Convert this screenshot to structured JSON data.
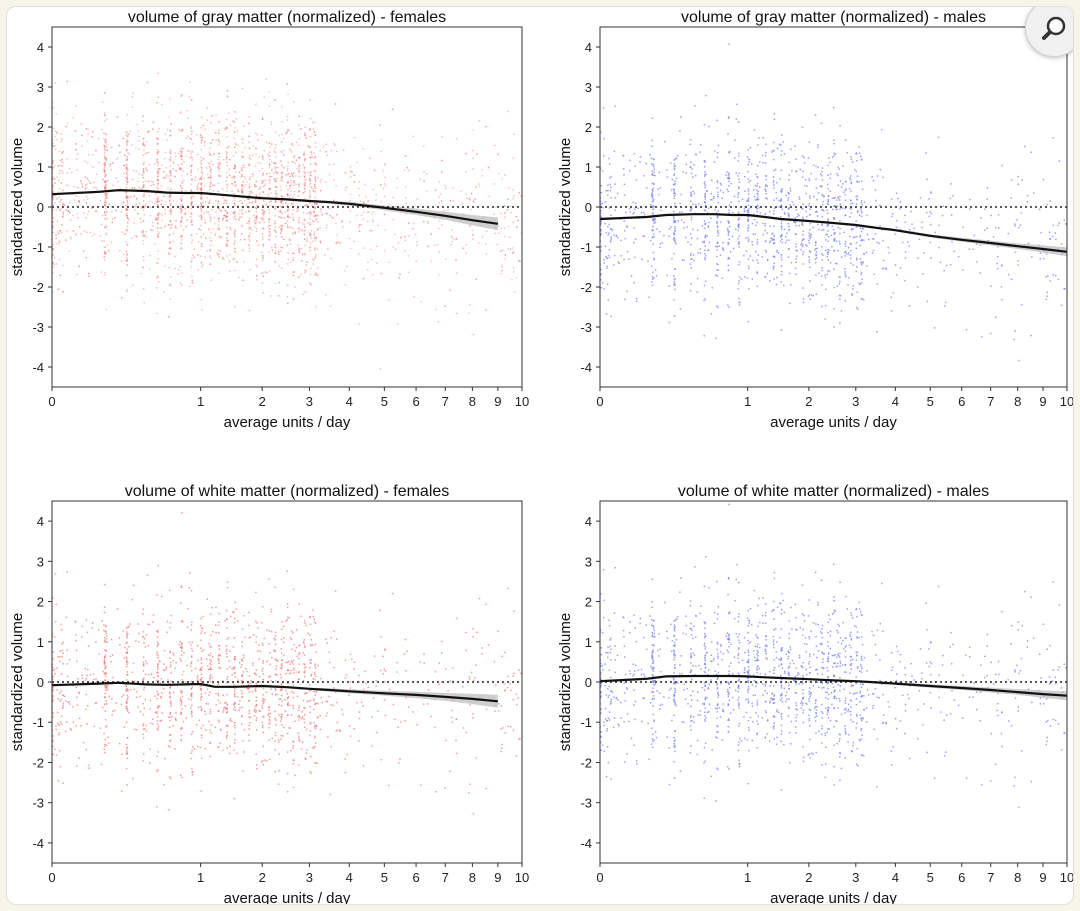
{
  "colors": {
    "females": "#ef7f7f",
    "males": "#8484f2",
    "trend": "#111111",
    "band": "#bdbdbd"
  },
  "zoom_icon": "magnifier-icon",
  "chart_data": [
    {
      "type": "scatter",
      "title": "volume of gray matter (normalized) - females",
      "xlabel": "average units / day",
      "ylabel": "standardized volume",
      "color": "females",
      "x_ticks": [
        "0",
        "1",
        "2",
        "3",
        "4",
        "5",
        "6",
        "7",
        "8",
        "9",
        "10"
      ],
      "y_ticks": [
        "-4",
        "-3",
        "-2",
        "-1",
        "0",
        "1",
        "2",
        "3",
        "4"
      ],
      "ylim": [
        -4.5,
        4.5
      ],
      "xlim": [
        0,
        10
      ],
      "x_scale": "square-root",
      "reference_line": {
        "y": 0,
        "style": "dotted"
      },
      "trend": {
        "x": [
          0,
          0.1,
          0.2,
          0.4,
          0.6,
          0.8,
          1.0,
          1.2,
          1.5,
          2.0,
          2.5,
          3.0,
          3.5,
          4.0,
          5.0,
          6.0,
          7.0,
          8.0,
          9.0
        ],
        "y": [
          0.32,
          0.38,
          0.42,
          0.4,
          0.36,
          0.35,
          0.35,
          0.32,
          0.28,
          0.22,
          0.19,
          0.15,
          0.12,
          0.08,
          -0.02,
          -0.12,
          -0.22,
          -0.33,
          -0.42
        ],
        "band": [
          0.03,
          0.03,
          0.03,
          0.02,
          0.02,
          0.02,
          0.02,
          0.02,
          0.02,
          0.03,
          0.03,
          0.03,
          0.04,
          0.05,
          0.06,
          0.08,
          0.1,
          0.13,
          0.16
        ]
      }
    },
    {
      "type": "scatter",
      "title": "volume of gray matter (normalized) - males",
      "xlabel": "average units / day",
      "ylabel": "standardized volume",
      "color": "males",
      "x_ticks": [
        "0",
        "1",
        "2",
        "3",
        "4",
        "5",
        "6",
        "7",
        "8",
        "9",
        "10"
      ],
      "y_ticks": [
        "-4",
        "-3",
        "-2",
        "-1",
        "0",
        "1",
        "2",
        "3",
        "4"
      ],
      "ylim": [
        -4.5,
        4.5
      ],
      "xlim": [
        0,
        10
      ],
      "x_scale": "square-root",
      "reference_line": {
        "y": 0,
        "style": "dotted"
      },
      "trend": {
        "x": [
          0,
          0.1,
          0.2,
          0.4,
          0.6,
          0.8,
          1.0,
          1.2,
          1.5,
          2.0,
          2.5,
          3.0,
          3.5,
          4.0,
          5.0,
          6.0,
          7.0,
          8.0,
          9.0,
          10.0
        ],
        "y": [
          -0.3,
          -0.25,
          -0.2,
          -0.18,
          -0.18,
          -0.2,
          -0.2,
          -0.24,
          -0.3,
          -0.35,
          -0.4,
          -0.45,
          -0.52,
          -0.58,
          -0.72,
          -0.82,
          -0.9,
          -0.98,
          -1.05,
          -1.12
        ],
        "band": [
          0.03,
          0.03,
          0.02,
          0.02,
          0.02,
          0.02,
          0.02,
          0.02,
          0.02,
          0.02,
          0.02,
          0.03,
          0.03,
          0.03,
          0.04,
          0.05,
          0.06,
          0.07,
          0.09,
          0.11
        ]
      }
    },
    {
      "type": "scatter",
      "title": "volume of white matter (normalized) - females",
      "xlabel": "average units / day",
      "ylabel": "standardized volume",
      "color": "females",
      "x_ticks": [
        "0",
        "1",
        "2",
        "3",
        "4",
        "5",
        "6",
        "7",
        "8",
        "9",
        "10"
      ],
      "y_ticks": [
        "-4",
        "-3",
        "-2",
        "-1",
        "0",
        "1",
        "2",
        "3",
        "4"
      ],
      "ylim": [
        -4.5,
        4.5
      ],
      "xlim": [
        0,
        10
      ],
      "x_scale": "square-root",
      "reference_line": {
        "y": 0,
        "style": "dotted"
      },
      "trend": {
        "x": [
          0,
          0.1,
          0.2,
          0.4,
          0.6,
          0.8,
          1.0,
          1.2,
          1.5,
          2.0,
          2.5,
          3.0,
          3.5,
          4.0,
          5.0,
          6.0,
          7.0,
          8.0,
          9.0
        ],
        "y": [
          -0.08,
          -0.04,
          -0.02,
          -0.06,
          -0.07,
          -0.06,
          -0.05,
          -0.12,
          -0.12,
          -0.1,
          -0.13,
          -0.17,
          -0.2,
          -0.23,
          -0.28,
          -0.32,
          -0.37,
          -0.42,
          -0.48
        ],
        "band": [
          0.03,
          0.03,
          0.03,
          0.02,
          0.02,
          0.02,
          0.02,
          0.02,
          0.02,
          0.03,
          0.03,
          0.03,
          0.04,
          0.05,
          0.06,
          0.08,
          0.1,
          0.13,
          0.16
        ]
      }
    },
    {
      "type": "scatter",
      "title": "volume of white matter (normalized) - males",
      "xlabel": "average units / day",
      "ylabel": "standardized volume",
      "color": "males",
      "x_ticks": [
        "0",
        "1",
        "2",
        "3",
        "4",
        "5",
        "6",
        "7",
        "8",
        "9",
        "10"
      ],
      "y_ticks": [
        "-4",
        "-3",
        "-2",
        "-1",
        "0",
        "1",
        "2",
        "3",
        "4"
      ],
      "ylim": [
        -4.5,
        4.5
      ],
      "xlim": [
        0,
        10
      ],
      "x_scale": "square-root",
      "reference_line": {
        "y": 0,
        "style": "dotted"
      },
      "trend": {
        "x": [
          0,
          0.1,
          0.2,
          0.4,
          0.6,
          0.8,
          1.0,
          1.2,
          1.5,
          2.0,
          2.5,
          3.0,
          3.5,
          4.0,
          5.0,
          6.0,
          7.0,
          8.0,
          9.0,
          10.0
        ],
        "y": [
          0.02,
          0.08,
          0.14,
          0.15,
          0.15,
          0.15,
          0.14,
          0.12,
          0.1,
          0.07,
          0.04,
          0.02,
          -0.01,
          -0.04,
          -0.1,
          -0.15,
          -0.2,
          -0.25,
          -0.3,
          -0.34
        ],
        "band": [
          0.03,
          0.03,
          0.02,
          0.02,
          0.02,
          0.02,
          0.02,
          0.02,
          0.02,
          0.02,
          0.02,
          0.03,
          0.03,
          0.03,
          0.04,
          0.05,
          0.06,
          0.07,
          0.09,
          0.11
        ]
      }
    }
  ]
}
